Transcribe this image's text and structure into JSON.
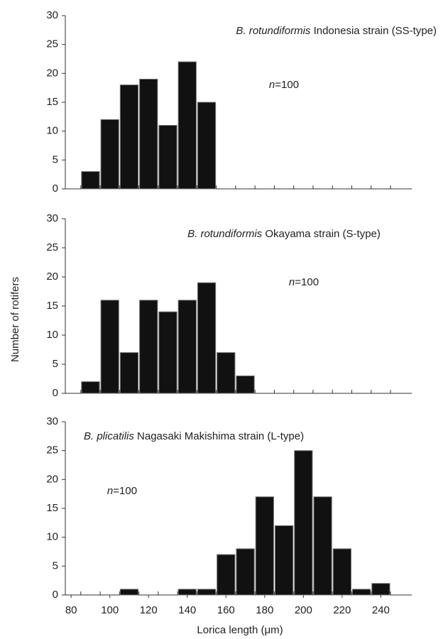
{
  "figure": {
    "ylabel": "Number of rotifers",
    "xlabel": "Lorica length (μm)"
  },
  "chart_data": [
    {
      "type": "histogram",
      "species": "B. rotundiformis",
      "title": "Indonesia strain (SS-type)",
      "n_symbol": "n",
      "n_value": "=100",
      "bins": [
        85,
        95,
        105,
        115,
        125,
        135,
        145,
        155,
        165,
        175,
        185,
        195,
        205,
        215,
        225,
        235,
        245
      ],
      "values": [
        3,
        12,
        18,
        19,
        11,
        22,
        15,
        0,
        0,
        0,
        0,
        0,
        0,
        0,
        0,
        0
      ],
      "color": "#111111",
      "xlim": [
        77,
        256
      ],
      "ylim": [
        0,
        30
      ],
      "yticks": [
        0,
        5,
        10,
        15,
        20,
        25,
        30
      ]
    },
    {
      "type": "histogram",
      "species": "B. rotundiformis",
      "title": "Okayama strain (S-type)",
      "n_symbol": "n",
      "n_value": "=100",
      "bins": [
        85,
        95,
        105,
        115,
        125,
        135,
        145,
        155,
        165,
        175,
        185,
        195,
        205,
        215,
        225,
        235,
        245
      ],
      "values": [
        2,
        16,
        7,
        16,
        14,
        16,
        19,
        7,
        3,
        0,
        0,
        0,
        0,
        0,
        0,
        0
      ],
      "color": "#111111",
      "xlim": [
        77,
        256
      ],
      "ylim": [
        0,
        30
      ],
      "yticks": [
        0,
        5,
        10,
        15,
        20,
        25,
        30
      ]
    },
    {
      "type": "histogram",
      "species": "B. plicatilis",
      "title": "Nagasaki Makishima strain (L-type)",
      "n_symbol": "n",
      "n_value": "=100",
      "bins": [
        85,
        95,
        105,
        115,
        125,
        135,
        145,
        155,
        165,
        175,
        185,
        195,
        205,
        215,
        225,
        235,
        245
      ],
      "values": [
        0,
        0,
        1,
        0,
        0,
        1,
        1,
        7,
        8,
        17,
        12,
        25,
        17,
        8,
        1,
        2
      ],
      "color": "#111111",
      "xlim": [
        77,
        256
      ],
      "ylim": [
        0,
        30
      ],
      "yticks": [
        0,
        5,
        10,
        15,
        20,
        25,
        30
      ],
      "xticks": [
        80,
        100,
        120,
        140,
        160,
        180,
        200,
        220,
        240
      ]
    }
  ]
}
